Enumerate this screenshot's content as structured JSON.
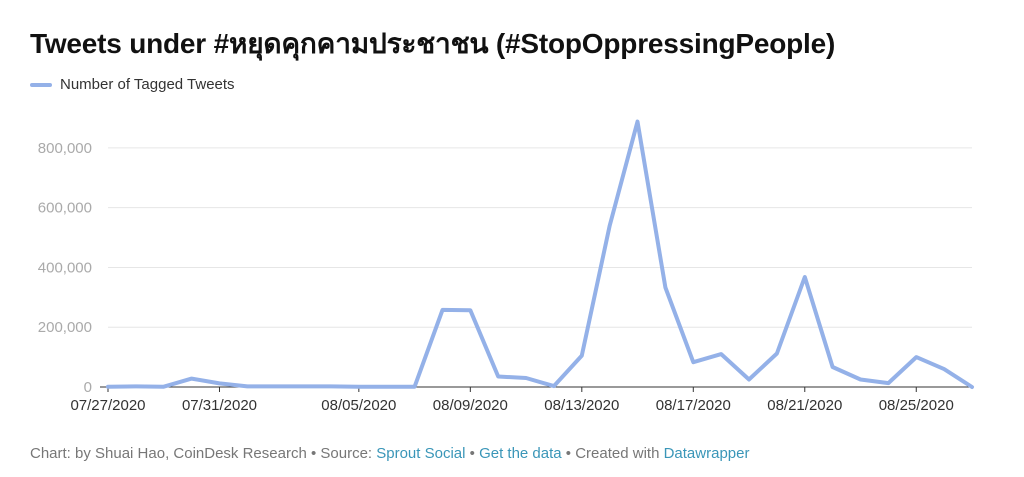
{
  "title": "Tweets under #หยุดคุกคามประชาชน (#StopOppressingPeople)",
  "legend": {
    "label": "Number of Tagged Tweets",
    "color": "#94b1e8"
  },
  "footer": {
    "prefix": "Chart: by Shuai Hao, CoinDesk Research • Source: ",
    "source_link": "Sprout Social",
    "sep1": " • ",
    "data_link": "Get the data",
    "sep2": " • Created with ",
    "tool_link": "Datawrapper"
  },
  "chart_data": {
    "type": "line",
    "title": "Tweets under #หยุดคุกคามประชาชน (#StopOppressingPeople)",
    "xlabel": "",
    "ylabel": "",
    "ylim": [
      0,
      900000
    ],
    "grid": true,
    "legend_position": "top-left",
    "y_ticks": [
      0,
      200000,
      400000,
      600000,
      800000
    ],
    "y_tick_labels": [
      "0",
      "200,000",
      "400,000",
      "600,000",
      "800,000"
    ],
    "x_tick_labels": [
      "07/27/2020",
      "07/31/2020",
      "08/05/2020",
      "08/09/2020",
      "08/13/2020",
      "08/17/2020",
      "08/21/2020",
      "08/25/2020"
    ],
    "x_tick_dates": [
      "2020-07-27",
      "2020-07-31",
      "2020-08-05",
      "2020-08-09",
      "2020-08-13",
      "2020-08-17",
      "2020-08-21",
      "2020-08-25"
    ],
    "series": [
      {
        "name": "Number of Tagged Tweets",
        "color": "#94b1e8",
        "x": [
          "2020-07-27",
          "2020-07-28",
          "2020-07-29",
          "2020-07-30",
          "2020-07-31",
          "2020-08-01",
          "2020-08-02",
          "2020-08-03",
          "2020-08-04",
          "2020-08-05",
          "2020-08-06",
          "2020-08-07",
          "2020-08-08",
          "2020-08-09",
          "2020-08-10",
          "2020-08-11",
          "2020-08-12",
          "2020-08-13",
          "2020-08-14",
          "2020-08-15",
          "2020-08-16",
          "2020-08-17",
          "2020-08-18",
          "2020-08-19",
          "2020-08-20",
          "2020-08-21",
          "2020-08-22",
          "2020-08-23",
          "2020-08-24",
          "2020-08-25",
          "2020-08-26",
          "2020-08-27"
        ],
        "values": [
          1000,
          2000,
          1000,
          28000,
          12000,
          2000,
          2000,
          2000,
          2000,
          1000,
          1000,
          1000,
          258000,
          257000,
          35000,
          30000,
          3000,
          105000,
          540000,
          888000,
          333000,
          83000,
          110000,
          25000,
          112000,
          368000,
          67000,
          25000,
          13000,
          100000,
          60000,
          0
        ]
      }
    ]
  }
}
